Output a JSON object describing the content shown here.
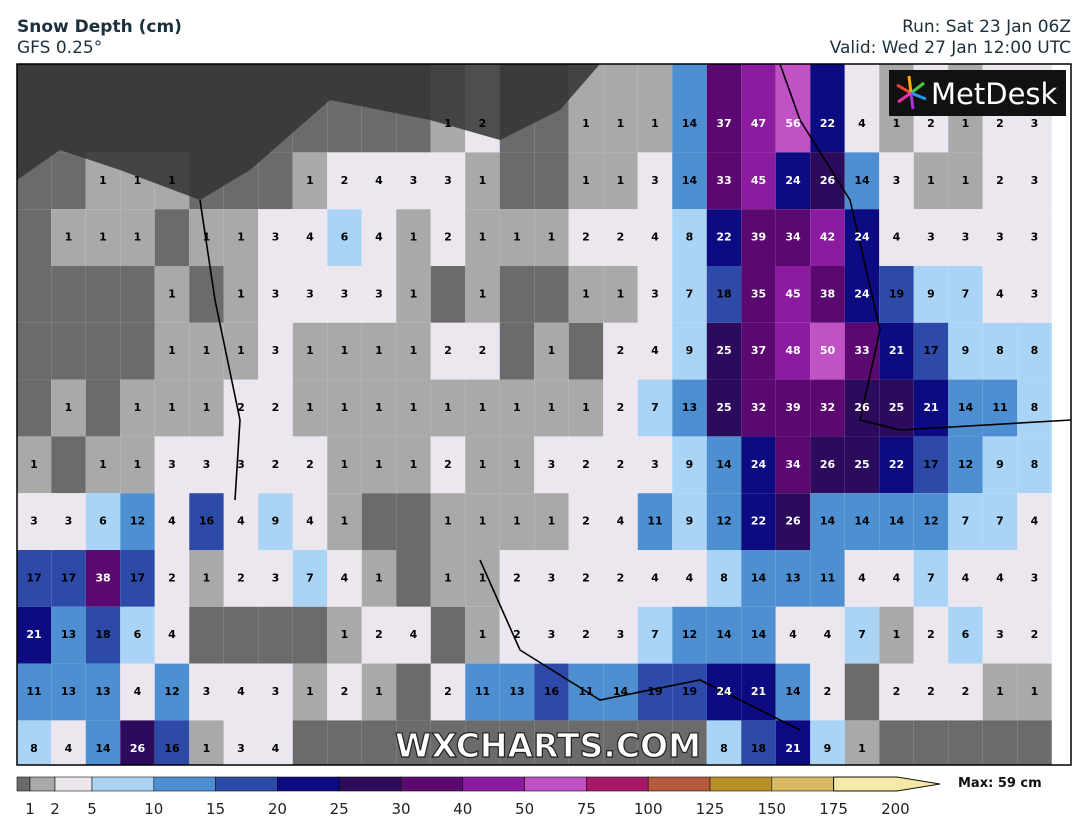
{
  "header": {
    "title": "Snow Depth (cm)",
    "model": "GFS 0.25°",
    "run": "Run: Sat 23 Jan 06Z",
    "valid": "Valid: Wed 27 Jan 12:00 UTC"
  },
  "logo": "MetDesk",
  "watermark": "WXCHARTS.COM",
  "grid": {
    "rows": [
      [
        null,
        null,
        null,
        null,
        null,
        null,
        null,
        null,
        null,
        null,
        null,
        null,
        1,
        2,
        null,
        null,
        1,
        1,
        1,
        14,
        37,
        47,
        56,
        22,
        4,
        1,
        2,
        1,
        2,
        3
      ],
      [
        null,
        null,
        1,
        1,
        1,
        null,
        null,
        null,
        1,
        2,
        4,
        3,
        3,
        1,
        null,
        null,
        1,
        1,
        3,
        14,
        33,
        45,
        24,
        26,
        14,
        3,
        1,
        1,
        2,
        3
      ],
      [
        null,
        1,
        1,
        1,
        null,
        1,
        1,
        3,
        4,
        6,
        4,
        1,
        2,
        1,
        1,
        1,
        2,
        2,
        4,
        8,
        22,
        39,
        34,
        42,
        24,
        4,
        3,
        3,
        3,
        3
      ],
      [
        null,
        null,
        null,
        null,
        1,
        null,
        1,
        3,
        3,
        3,
        3,
        1,
        null,
        1,
        null,
        null,
        1,
        1,
        3,
        7,
        18,
        35,
        45,
        38,
        24,
        19,
        9,
        7,
        4,
        3
      ],
      [
        null,
        null,
        null,
        null,
        1,
        1,
        1,
        3,
        1,
        1,
        1,
        1,
        2,
        2,
        null,
        1,
        null,
        2,
        4,
        9,
        25,
        37,
        48,
        50,
        33,
        21,
        17,
        9,
        8,
        8
      ],
      [
        null,
        1,
        null,
        1,
        1,
        1,
        2,
        2,
        1,
        1,
        1,
        1,
        1,
        1,
        1,
        1,
        1,
        2,
        7,
        13,
        25,
        32,
        39,
        32,
        26,
        25,
        21,
        14,
        11,
        8
      ],
      [
        1,
        null,
        1,
        1,
        3,
        3,
        3,
        2,
        2,
        1,
        1,
        1,
        2,
        1,
        1,
        3,
        2,
        2,
        3,
        9,
        14,
        24,
        34,
        26,
        25,
        22,
        17,
        12,
        9,
        8
      ],
      [
        3,
        3,
        6,
        12,
        4,
        16,
        4,
        9,
        4,
        1,
        null,
        null,
        1,
        1,
        1,
        1,
        2,
        4,
        11,
        9,
        12,
        22,
        26,
        14,
        14,
        14,
        12,
        7,
        7,
        4
      ],
      [
        17,
        17,
        38,
        17,
        2,
        1,
        2,
        3,
        7,
        4,
        1,
        null,
        1,
        1,
        2,
        3,
        2,
        2,
        4,
        4,
        8,
        14,
        13,
        11,
        4,
        4,
        7,
        4,
        4,
        3
      ],
      [
        21,
        13,
        18,
        6,
        4,
        null,
        null,
        null,
        null,
        1,
        2,
        4,
        null,
        1,
        2,
        3,
        2,
        3,
        7,
        12,
        14,
        14,
        4,
        4,
        7,
        1,
        2,
        6,
        3,
        2
      ],
      [
        11,
        13,
        13,
        4,
        12,
        3,
        4,
        3,
        1,
        2,
        1,
        null,
        2,
        11,
        13,
        16,
        11,
        14,
        19,
        19,
        24,
        21,
        14,
        2,
        null,
        2,
        2,
        2,
        1,
        1
      ],
      [
        8,
        4,
        14,
        26,
        16,
        1,
        3,
        4,
        null,
        null,
        null,
        null,
        null,
        null,
        null,
        null,
        null,
        null,
        null,
        null,
        8,
        18,
        21,
        9,
        1,
        null,
        null,
        null,
        null,
        null
      ]
    ]
  },
  "colorbar": {
    "ticks": [
      1,
      2,
      5,
      10,
      15,
      20,
      25,
      30,
      40,
      50,
      75,
      100,
      125,
      150,
      175,
      200
    ],
    "colors": [
      "#6b6b6b",
      "#a9a9a9",
      "#ece6ef",
      "#aad4f5",
      "#4e8fd2",
      "#2d4aa8",
      "#0c0b82",
      "#2c0a5c",
      "#5b0870",
      "#8b1c9f",
      "#c052c6",
      "#a8186a",
      "#b85a40",
      "#b8902a",
      "#d8b860",
      "#f8e8a8"
    ],
    "max_label": "Max: 59 cm"
  }
}
